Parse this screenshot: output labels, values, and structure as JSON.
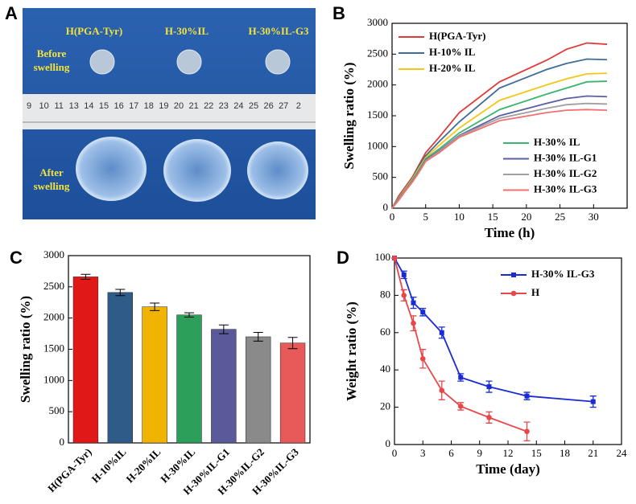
{
  "photo": {
    "panel": "A",
    "samples": [
      "H(PGA-Tyr)",
      "H-30%IL",
      "H-30%IL-G3"
    ],
    "before": [
      "Before",
      "swelling"
    ],
    "after": [
      "After",
      "swelling"
    ],
    "ruler": [
      "9",
      "10",
      "11",
      "13",
      "14",
      "15",
      "16",
      "17",
      "18",
      "19",
      "20",
      "21",
      "22",
      "23",
      "24",
      "25",
      "26",
      "27",
      "2"
    ]
  },
  "chart_data": [
    {
      "type": "line",
      "panel": "B",
      "x_label": "Time (h)",
      "y_label": "Swelling ratio (%)",
      "x": [
        0,
        1,
        2,
        3,
        4,
        5,
        7,
        10,
        16,
        23,
        26,
        29,
        32
      ],
      "xlim": [
        0,
        35
      ],
      "xticks": [
        0,
        5,
        10,
        15,
        20,
        25,
        30
      ],
      "ylim": [
        0,
        3000
      ],
      "yticks": [
        0,
        500,
        1000,
        1500,
        2000,
        2500,
        3000
      ],
      "series": [
        {
          "name": "H(PGA-Tyr)",
          "color": "#e03a3a",
          "legend": "upper left",
          "values": [
            0,
            200,
            350,
            500,
            700,
            900,
            1150,
            1550,
            2050,
            2400,
            2580,
            2680,
            2660
          ]
        },
        {
          "name": "H-10% IL",
          "color": "#3d6e99",
          "legend": "upper left",
          "values": [
            0,
            180,
            330,
            480,
            680,
            850,
            1080,
            1400,
            1950,
            2250,
            2350,
            2420,
            2410
          ]
        },
        {
          "name": "H-20% IL",
          "color": "#f5c518",
          "legend": "upper left",
          "values": [
            0,
            170,
            320,
            470,
            650,
            820,
            1020,
            1300,
            1750,
            2000,
            2100,
            2180,
            2190
          ]
        },
        {
          "name": "H-30% IL",
          "color": "#3cb371",
          "legend": "lower right",
          "values": [
            0,
            160,
            300,
            450,
            620,
            800,
            960,
            1220,
            1600,
            1850,
            1950,
            2050,
            2060
          ]
        },
        {
          "name": "H-30% IL-G1",
          "color": "#5b5ea6",
          "legend": "lower right",
          "values": [
            0,
            150,
            300,
            440,
            600,
            780,
            930,
            1180,
            1500,
            1700,
            1780,
            1820,
            1810
          ]
        },
        {
          "name": "H-30% IL-G2",
          "color": "#a0a0a0",
          "legend": "lower right",
          "values": [
            0,
            140,
            290,
            430,
            590,
            770,
            920,
            1170,
            1460,
            1620,
            1680,
            1700,
            1690
          ]
        },
        {
          "name": "H-30% IL-G3",
          "color": "#f07070",
          "legend": "lower right",
          "values": [
            0,
            130,
            280,
            420,
            580,
            760,
            900,
            1150,
            1420,
            1550,
            1590,
            1600,
            1590
          ]
        }
      ]
    },
    {
      "type": "bar",
      "panel": "C",
      "y_label": "Swelling ratio (%)",
      "categories": [
        "H(PGA-Tyr)",
        "H-10%IL",
        "H-20%IL",
        "H-30%IL",
        "H-30%IL-G1",
        "H-30%IL-G2",
        "H-30%IL-G3"
      ],
      "values": [
        2660,
        2410,
        2180,
        2050,
        1820,
        1700,
        1600
      ],
      "errors": [
        40,
        50,
        60,
        35,
        70,
        70,
        90
      ],
      "colors": [
        "#e01818",
        "#2e5b87",
        "#f0b400",
        "#2ca05a",
        "#5a5a9a",
        "#8a8a8a",
        "#e85a5a"
      ],
      "ylim": [
        0,
        3000
      ],
      "yticks": [
        0,
        500,
        1000,
        1500,
        2000,
        2500,
        3000
      ]
    },
    {
      "type": "line",
      "panel": "D",
      "x_label": "Time (day)",
      "y_label": "Weight ratio (%)",
      "xlim": [
        0,
        24
      ],
      "xticks": [
        0,
        3,
        6,
        9,
        12,
        15,
        18,
        21,
        24
      ],
      "ylim": [
        0,
        100
      ],
      "yticks": [
        0,
        20,
        40,
        60,
        80,
        100
      ],
      "series": [
        {
          "name": "H-30% IL-G3",
          "color": "#1a2bd6",
          "marker": "square",
          "legend": "upper right",
          "x": [
            0,
            1,
            2,
            3,
            5,
            7,
            10,
            14,
            21
          ],
          "values": [
            100,
            91,
            76,
            71,
            60,
            36,
            31,
            26,
            23
          ],
          "errors": [
            0,
            2,
            3,
            2,
            3,
            2,
            3,
            2,
            3
          ]
        },
        {
          "name": "H",
          "color": "#e8474a",
          "marker": "circle",
          "legend": "upper right",
          "x": [
            0,
            1,
            2,
            3,
            5,
            7,
            10,
            14
          ],
          "values": [
            100,
            80,
            65,
            46,
            29,
            20.5,
            14.5,
            7
          ],
          "errors": [
            0,
            3,
            4,
            5,
            5,
            2,
            3,
            5
          ]
        }
      ]
    }
  ]
}
